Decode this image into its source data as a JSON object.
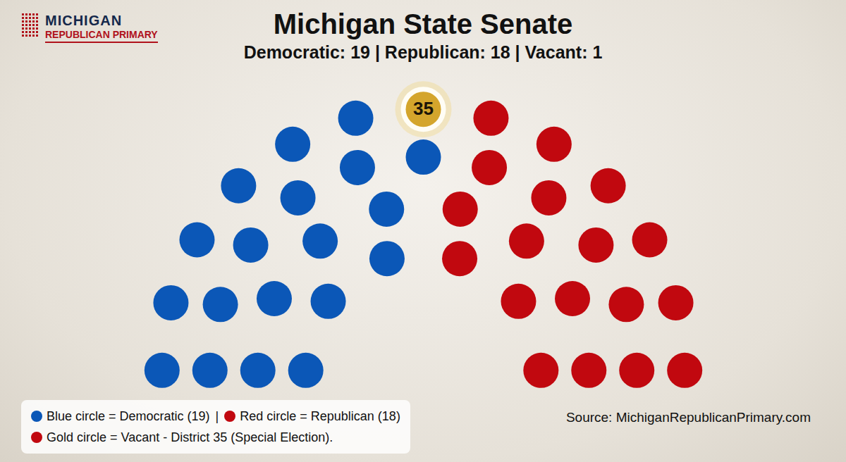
{
  "chart_data": {
    "type": "parliament",
    "title": "Michigan State Senate",
    "subtitle": "Democratic: 19 | Republican: 18 | Vacant: 1",
    "logo": [
      "MICHIGAN",
      "REPUBLICAN PRIMARY"
    ],
    "categories": [
      "Democratic",
      "Vacant",
      "Republican"
    ],
    "values": [
      19,
      1,
      18
    ],
    "colors": [
      "#0b57b7",
      "#d4a52c",
      "#c1080f"
    ],
    "annotations": [
      {
        "category": "Vacant",
        "text": "35"
      }
    ],
    "legend": "bottom-left",
    "legend_rows": [
      [
        {
          "label": "Blue circle = Democratic (19)",
          "color": "#0b57b7"
        },
        {
          "label": "Red circle = Republican (18)",
          "color": "#c1080f"
        }
      ],
      [
        {
          "label": "Gold circle = Vacant - District 35 (Special Election).",
          "color": "#c1080f"
        }
      ]
    ],
    "legend_separator": "|",
    "source": "Source: MichiganRepublicanPrimary.com",
    "tick_labels": false
  }
}
